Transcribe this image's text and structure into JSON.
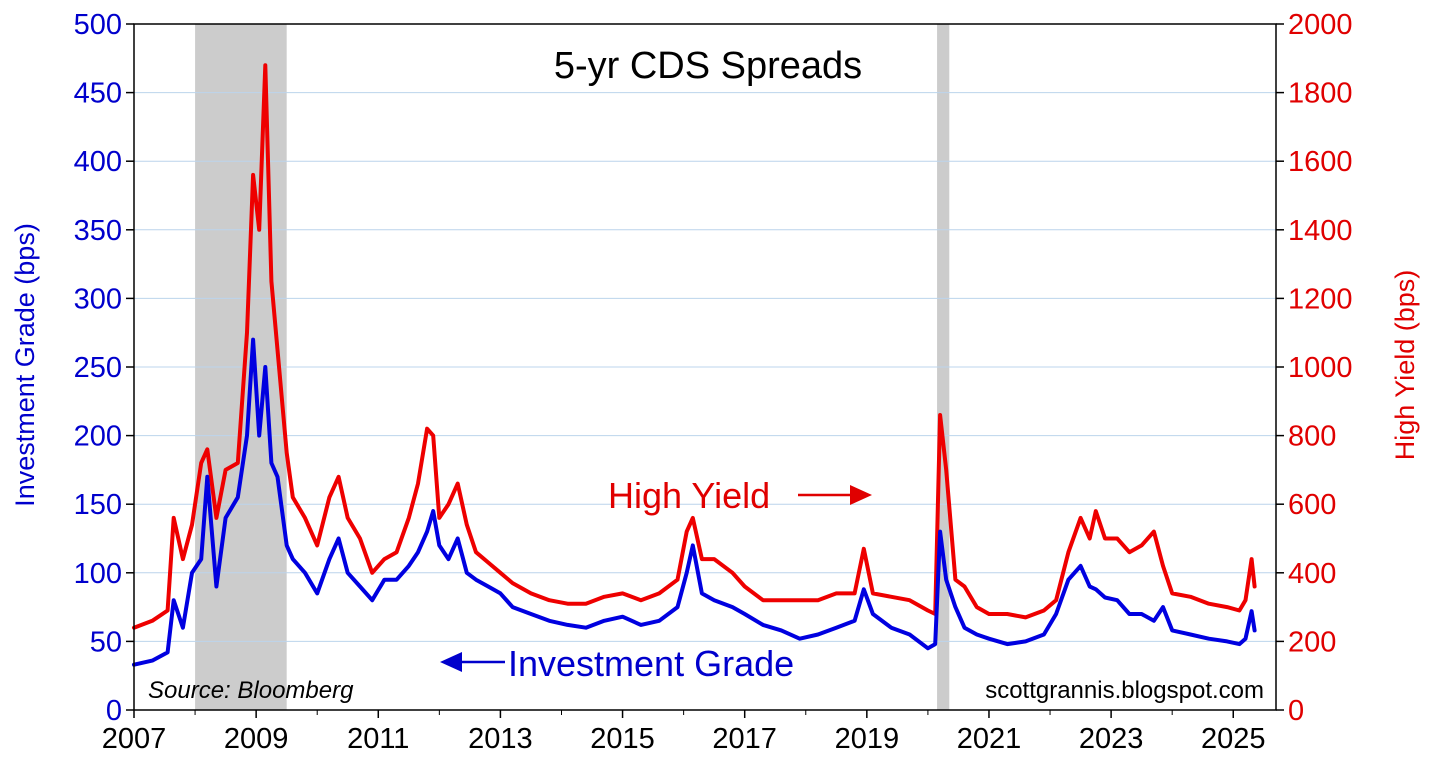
{
  "chart_data": {
    "type": "line",
    "title": "5-yr CDS Spreads",
    "ylabel_left": "Investment Grade (bps)",
    "ylabel_right": "High Yield (bps)",
    "xlabel": "",
    "x_ticks": [
      "2007",
      "2009",
      "2011",
      "2013",
      "2015",
      "2017",
      "2019",
      "2021",
      "2023",
      "2025"
    ],
    "xlim": [
      2007,
      2025.7
    ],
    "ylim_left": [
      0,
      500
    ],
    "ylim_right": [
      0,
      2000
    ],
    "y_ticks_left": [
      "0",
      "50",
      "100",
      "150",
      "200",
      "250",
      "300",
      "350",
      "400",
      "450",
      "500"
    ],
    "y_ticks_right": [
      "0",
      "200",
      "400",
      "600",
      "800",
      "1000",
      "1200",
      "1400",
      "1600",
      "1800",
      "2000"
    ],
    "grid": true,
    "recessions": [
      {
        "start": 2008.0,
        "end": 2009.5
      },
      {
        "start": 2020.15,
        "end": 2020.35
      }
    ],
    "annotations": {
      "high_yield": "High Yield",
      "investment_grade": "Investment Grade",
      "source": "Source: Bloomberg",
      "credit": "scottgrannis.blogspot.com"
    },
    "colors": {
      "investment_grade": "#0000e0",
      "high_yield": "#ee0000",
      "left_axis": "#0000cc",
      "right_axis": "#e00000",
      "recession": "#cccccc",
      "grid": "#bcd4ec"
    },
    "series": [
      {
        "name": "Investment Grade",
        "axis": "left",
        "x": [
          2007.0,
          2007.3,
          2007.55,
          2007.65,
          2007.8,
          2007.95,
          2008.1,
          2008.2,
          2008.35,
          2008.5,
          2008.7,
          2008.85,
          2008.95,
          2009.05,
          2009.15,
          2009.25,
          2009.35,
          2009.5,
          2009.6,
          2009.8,
          2010.0,
          2010.2,
          2010.35,
          2010.5,
          2010.7,
          2010.9,
          2011.1,
          2011.3,
          2011.5,
          2011.65,
          2011.8,
          2011.9,
          2012.0,
          2012.15,
          2012.3,
          2012.45,
          2012.6,
          2012.8,
          2013.0,
          2013.2,
          2013.5,
          2013.8,
          2014.1,
          2014.4,
          2014.7,
          2015.0,
          2015.3,
          2015.6,
          2015.9,
          2016.05,
          2016.15,
          2016.3,
          2016.5,
          2016.8,
          2017.0,
          2017.3,
          2017.6,
          2017.9,
          2018.2,
          2018.5,
          2018.8,
          2018.95,
          2019.1,
          2019.4,
          2019.7,
          2020.0,
          2020.12,
          2020.2,
          2020.3,
          2020.45,
          2020.6,
          2020.8,
          2021.0,
          2021.3,
          2021.6,
          2021.9,
          2022.1,
          2022.3,
          2022.5,
          2022.65,
          2022.75,
          2022.9,
          2023.1,
          2023.3,
          2023.5,
          2023.7,
          2023.85,
          2024.0,
          2024.3,
          2024.6,
          2024.9,
          2025.1,
          2025.2,
          2025.3,
          2025.35
        ],
        "values": [
          33,
          36,
          42,
          80,
          60,
          100,
          110,
          170,
          90,
          140,
          155,
          200,
          270,
          200,
          250,
          180,
          170,
          120,
          110,
          100,
          85,
          110,
          125,
          100,
          90,
          80,
          95,
          95,
          105,
          115,
          130,
          145,
          120,
          110,
          125,
          100,
          95,
          90,
          85,
          75,
          70,
          65,
          62,
          60,
          65,
          68,
          62,
          65,
          75,
          100,
          120,
          85,
          80,
          75,
          70,
          62,
          58,
          52,
          55,
          60,
          65,
          88,
          70,
          60,
          55,
          45,
          48,
          130,
          95,
          75,
          60,
          55,
          52,
          48,
          50,
          55,
          70,
          95,
          105,
          90,
          88,
          82,
          80,
          70,
          70,
          65,
          75,
          58,
          55,
          52,
          50,
          48,
          52,
          72,
          58
        ]
      },
      {
        "name": "High Yield",
        "axis": "right",
        "x": [
          2007.0,
          2007.3,
          2007.55,
          2007.65,
          2007.8,
          2007.95,
          2008.1,
          2008.2,
          2008.35,
          2008.5,
          2008.7,
          2008.85,
          2008.95,
          2009.05,
          2009.15,
          2009.25,
          2009.35,
          2009.5,
          2009.6,
          2009.8,
          2010.0,
          2010.2,
          2010.35,
          2010.5,
          2010.7,
          2010.9,
          2011.1,
          2011.3,
          2011.5,
          2011.65,
          2011.8,
          2011.9,
          2012.0,
          2012.15,
          2012.3,
          2012.45,
          2012.6,
          2012.8,
          2013.0,
          2013.2,
          2013.5,
          2013.8,
          2014.1,
          2014.4,
          2014.7,
          2015.0,
          2015.3,
          2015.6,
          2015.9,
          2016.05,
          2016.15,
          2016.3,
          2016.5,
          2016.8,
          2017.0,
          2017.3,
          2017.6,
          2017.9,
          2018.2,
          2018.5,
          2018.8,
          2018.95,
          2019.1,
          2019.4,
          2019.7,
          2020.0,
          2020.12,
          2020.2,
          2020.3,
          2020.45,
          2020.6,
          2020.8,
          2021.0,
          2021.3,
          2021.6,
          2021.9,
          2022.1,
          2022.3,
          2022.5,
          2022.65,
          2022.75,
          2022.9,
          2023.1,
          2023.3,
          2023.5,
          2023.7,
          2023.85,
          2024.0,
          2024.3,
          2024.6,
          2024.9,
          2025.1,
          2025.2,
          2025.3,
          2025.35
        ],
        "values": [
          240,
          260,
          290,
          560,
          440,
          540,
          720,
          760,
          560,
          700,
          720,
          1100,
          1560,
          1400,
          1880,
          1250,
          1050,
          750,
          620,
          560,
          480,
          620,
          680,
          560,
          500,
          400,
          440,
          460,
          560,
          660,
          820,
          800,
          560,
          600,
          660,
          540,
          460,
          430,
          400,
          370,
          340,
          320,
          310,
          310,
          330,
          340,
          320,
          340,
          380,
          520,
          560,
          440,
          440,
          400,
          360,
          320,
          320,
          320,
          320,
          340,
          340,
          470,
          340,
          330,
          320,
          290,
          280,
          860,
          700,
          380,
          360,
          300,
          280,
          280,
          270,
          290,
          320,
          460,
          560,
          500,
          580,
          500,
          500,
          460,
          480,
          520,
          420,
          340,
          330,
          310,
          300,
          290,
          320,
          440,
          360
        ]
      }
    ]
  }
}
